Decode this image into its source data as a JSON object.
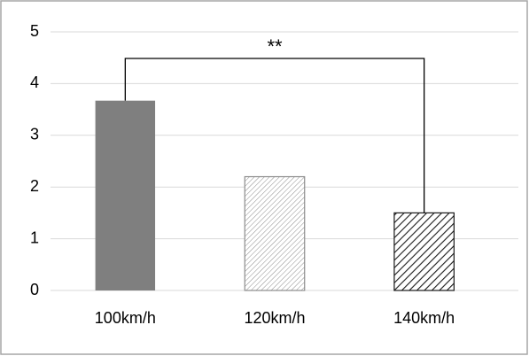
{
  "chart_data": {
    "type": "bar",
    "categories": [
      "100km/h",
      "120km/h",
      "140km/h"
    ],
    "values": [
      3.67,
      2.2,
      1.5
    ],
    "colors": [
      "#7f7f7f",
      "#8c8c8c",
      "#1a1a1a"
    ],
    "hatch": [
      false,
      true,
      true
    ],
    "ylim": [
      0,
      5
    ],
    "yticks": [
      0,
      1,
      2,
      3,
      4,
      5
    ],
    "grid": true,
    "annotations": [
      {
        "text": "**",
        "from": 0,
        "to": 2
      }
    ]
  }
}
